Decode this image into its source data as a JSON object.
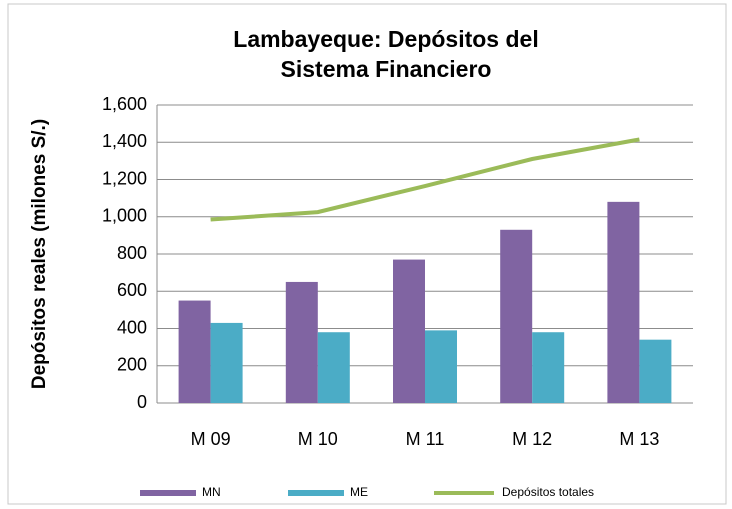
{
  "chart_data": {
    "type": "bar",
    "title": "Lambayeque: Depósitos del Sistema Financiero",
    "y_label": "Depósitos reales (milones S/.)",
    "categories": [
      "M 09",
      "M 10",
      "M 11",
      "M 12",
      "M 13"
    ],
    "series": [
      {
        "name": "MN",
        "color": "#8064a2",
        "type": "bar",
        "values": [
          550,
          650,
          770,
          930,
          1080
        ]
      },
      {
        "name": "ME",
        "color": "#4bacc6",
        "type": "bar",
        "values": [
          430,
          380,
          390,
          380,
          340
        ]
      },
      {
        "name": "Depósitos totales",
        "color": "#9bbb59",
        "type": "line",
        "values": [
          985,
          1025,
          1165,
          1310,
          1415
        ]
      }
    ],
    "ylim": [
      0,
      1600
    ],
    "yticks": [
      0,
      200,
      400,
      600,
      800,
      {
        "value": 1000,
        "label": "1,000"
      },
      {
        "value": 1200,
        "label": "1,200"
      },
      {
        "value": 1400,
        "label": "1,400"
      },
      {
        "value": 1600,
        "label": "1,600"
      }
    ],
    "grid": true,
    "legend": "bottom"
  }
}
